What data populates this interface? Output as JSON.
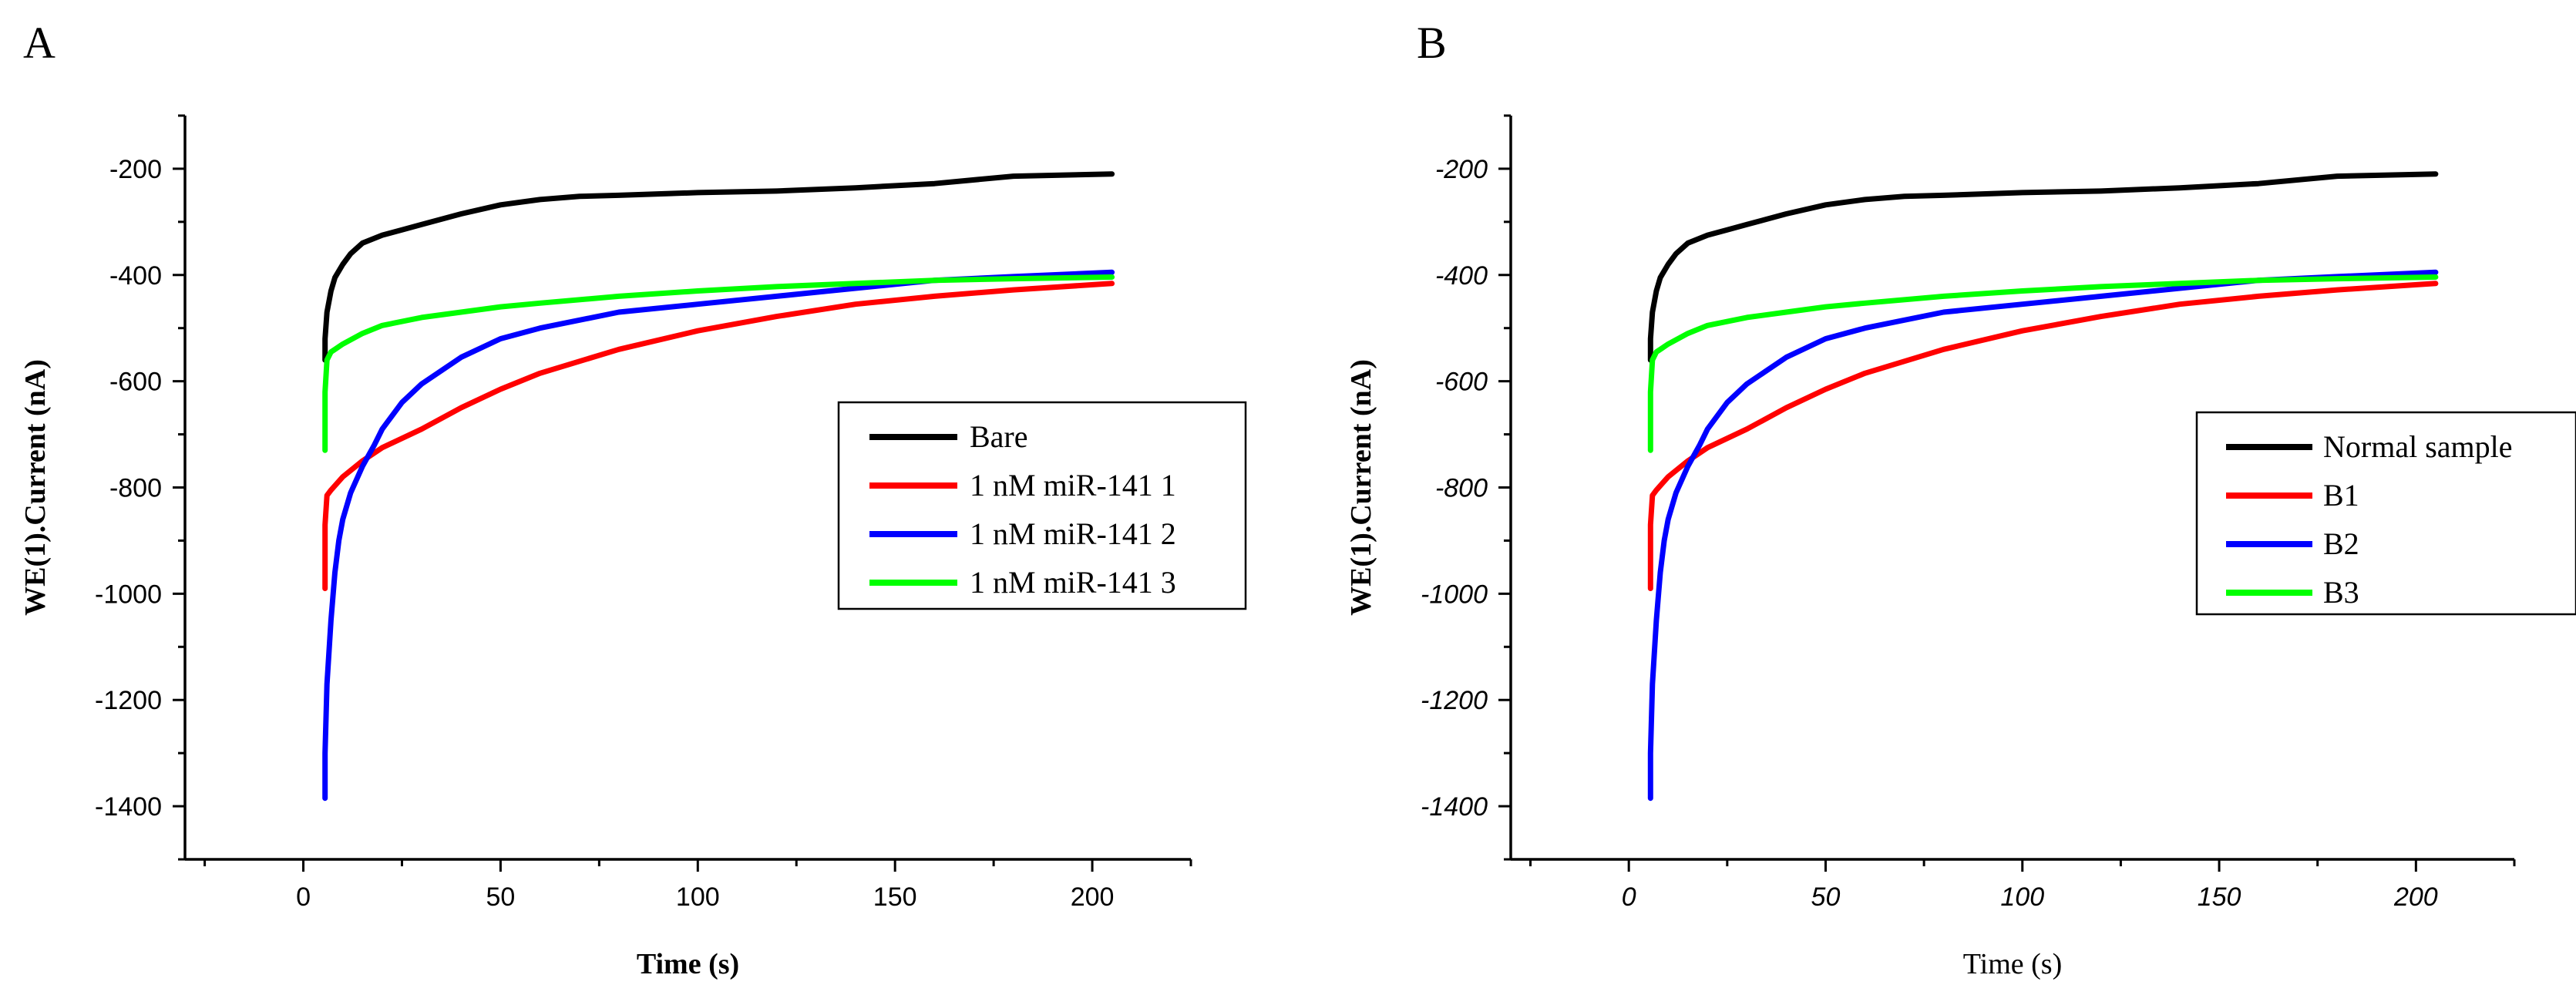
{
  "figure": {
    "panels_count": 2
  },
  "chart_data": [
    {
      "panel_label": "A",
      "type": "line",
      "title": "",
      "xlabel": "Time (s)",
      "ylabel": "WE(1).Current (nA)",
      "xlim": [
        -30,
        225
      ],
      "ylim": [
        -1500,
        -100
      ],
      "xticks": [
        0,
        50,
        100,
        150,
        200
      ],
      "yticks": [
        -200,
        -400,
        -600,
        -800,
        -1000,
        -1200,
        -1400
      ],
      "xtick_labels": [
        "0",
        "50",
        "100",
        "150",
        "200"
      ],
      "ytick_labels": [
        "-200",
        "-400",
        "-600",
        "-800",
        "-1000",
        "-1200",
        "-1400"
      ],
      "legend_position": "right",
      "series": [
        {
          "name": "Bare",
          "color": "#000000",
          "x": [
            5.5,
            5.5,
            6,
            7,
            8,
            10,
            12,
            15,
            20,
            25,
            30,
            40,
            50,
            60,
            70,
            80,
            100,
            120,
            140,
            160,
            180,
            205
          ],
          "y": [
            -560,
            -520,
            -470,
            -430,
            -405,
            -380,
            -360,
            -340,
            -325,
            -315,
            -305,
            -285,
            -268,
            -258,
            -252,
            -250,
            -245,
            -242,
            -236,
            -228,
            -214,
            -210
          ]
        },
        {
          "name": "1 nM miR-141 1",
          "color": "#ff0000",
          "x": [
            5.5,
            5.5,
            6,
            7,
            10,
            15,
            20,
            30,
            40,
            50,
            60,
            80,
            100,
            120,
            140,
            160,
            180,
            205
          ],
          "y": [
            -990,
            -870,
            -815,
            -805,
            -780,
            -750,
            -725,
            -690,
            -650,
            -615,
            -585,
            -540,
            -505,
            -478,
            -455,
            -440,
            -428,
            -416
          ]
        },
        {
          "name": "1 nM miR-141 2",
          "color": "#0000ff",
          "x": [
            5.5,
            5.5,
            6,
            7,
            8,
            9,
            10,
            12,
            15,
            18,
            20,
            25,
            30,
            40,
            50,
            60,
            80,
            100,
            120,
            140,
            160,
            180,
            205
          ],
          "y": [
            -1385,
            -1300,
            -1170,
            -1050,
            -960,
            -900,
            -860,
            -810,
            -760,
            -720,
            -690,
            -640,
            -605,
            -555,
            -520,
            -500,
            -470,
            -455,
            -440,
            -425,
            -410,
            -403,
            -395
          ]
        },
        {
          "name": "1 nM miR-141 3",
          "color": "#00ff00",
          "x": [
            5.5,
            5.5,
            6,
            7,
            8,
            10,
            15,
            20,
            30,
            40,
            50,
            60,
            80,
            100,
            120,
            140,
            160,
            180,
            205
          ],
          "y": [
            -730,
            -620,
            -560,
            -545,
            -540,
            -530,
            -510,
            -495,
            -480,
            -470,
            -460,
            -453,
            -440,
            -430,
            -422,
            -416,
            -410,
            -407,
            -404
          ]
        }
      ]
    },
    {
      "panel_label": "B",
      "type": "line",
      "title": "",
      "xlabel": "Time (s)",
      "ylabel": "WE(1).Current (nA)",
      "xlim": [
        -30,
        225
      ],
      "ylim": [
        -1500,
        -100
      ],
      "xticks": [
        0,
        50,
        100,
        150,
        200
      ],
      "yticks": [
        -200,
        -400,
        -600,
        -800,
        -1000,
        -1200,
        -1400
      ],
      "xtick_labels": [
        "0",
        "50",
        "100",
        "150",
        "200"
      ],
      "ytick_labels": [
        "-200",
        "-400",
        "-600",
        "-800",
        "-1000",
        "-1200",
        "-1400"
      ],
      "legend_position": "right",
      "series": [
        {
          "name": "Normal sample",
          "color": "#000000",
          "x": [
            5.5,
            5.5,
            6,
            7,
            8,
            10,
            12,
            15,
            20,
            25,
            30,
            40,
            50,
            60,
            70,
            80,
            100,
            120,
            140,
            160,
            180,
            205
          ],
          "y": [
            -560,
            -520,
            -470,
            -430,
            -405,
            -380,
            -360,
            -340,
            -325,
            -315,
            -305,
            -285,
            -268,
            -258,
            -252,
            -250,
            -245,
            -242,
            -236,
            -228,
            -214,
            -210
          ]
        },
        {
          "name": "B1",
          "color": "#ff0000",
          "x": [
            5.5,
            5.5,
            6,
            7,
            10,
            15,
            20,
            30,
            40,
            50,
            60,
            80,
            100,
            120,
            140,
            160,
            180,
            205
          ],
          "y": [
            -990,
            -870,
            -815,
            -805,
            -780,
            -750,
            -725,
            -690,
            -650,
            -615,
            -585,
            -540,
            -505,
            -478,
            -455,
            -440,
            -428,
            -416
          ]
        },
        {
          "name": "B2",
          "color": "#0000ff",
          "x": [
            5.5,
            5.5,
            6,
            7,
            8,
            9,
            10,
            12,
            15,
            18,
            20,
            25,
            30,
            40,
            50,
            60,
            80,
            100,
            120,
            140,
            160,
            180,
            205
          ],
          "y": [
            -1385,
            -1300,
            -1170,
            -1050,
            -960,
            -900,
            -860,
            -810,
            -760,
            -720,
            -690,
            -640,
            -605,
            -555,
            -520,
            -500,
            -470,
            -455,
            -440,
            -425,
            -410,
            -403,
            -395
          ]
        },
        {
          "name": "B3",
          "color": "#00ff00",
          "x": [
            5.5,
            5.5,
            6,
            7,
            8,
            10,
            15,
            20,
            30,
            40,
            50,
            60,
            80,
            100,
            120,
            140,
            160,
            180,
            205
          ],
          "y": [
            -730,
            -620,
            -560,
            -545,
            -540,
            -530,
            -510,
            -495,
            -480,
            -470,
            -460,
            -453,
            -440,
            -430,
            -422,
            -416,
            -410,
            -407,
            -404
          ]
        }
      ]
    }
  ]
}
